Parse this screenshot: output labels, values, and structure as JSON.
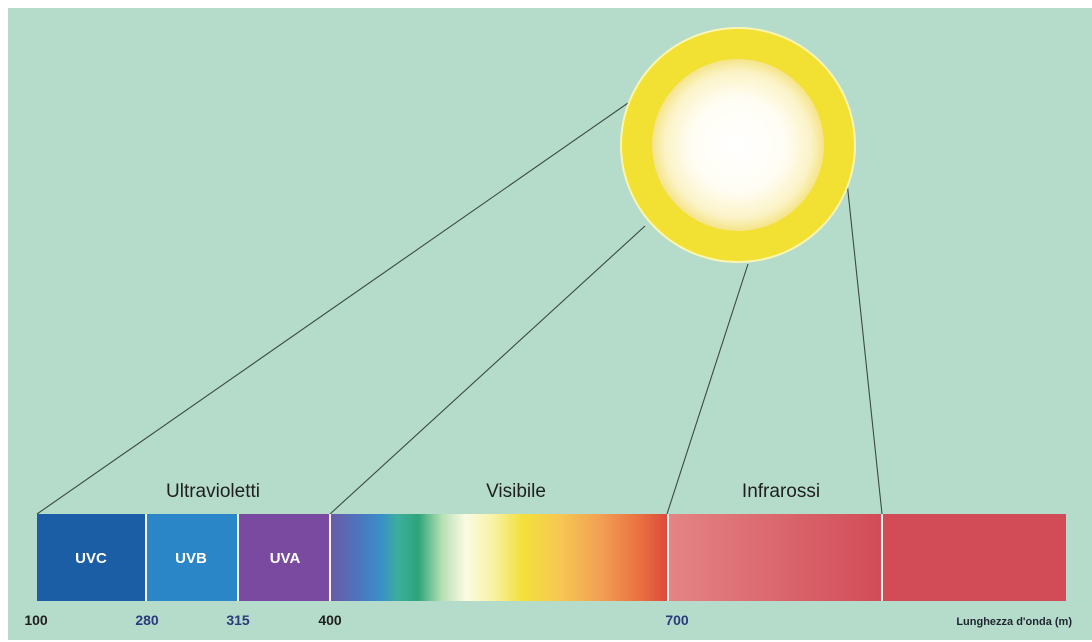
{
  "colors": {
    "background": "#b5dccb",
    "ray": "#3a4a44",
    "sun_ring": "#f2e032",
    "uvc": "#1c5ea6",
    "uvb": "#2a86c6",
    "uva": "#7a4aa0",
    "infrared_light": "#e07d7d",
    "infrared_dark": "#d24c58",
    "tick_dark": "#1f1f1f",
    "tick_blue": "#2a3a7a"
  },
  "regions": {
    "ultraviolet": "Ultravioletti",
    "visible": "Visibile",
    "infrared": "Infrarossi"
  },
  "bands": {
    "uvc": "UVC",
    "uvb": "UVB",
    "uva": "UVA"
  },
  "ticks": [
    "100",
    "280",
    "315",
    "400",
    "700"
  ],
  "axis_title": "Lunghezza d'onda (m)"
}
